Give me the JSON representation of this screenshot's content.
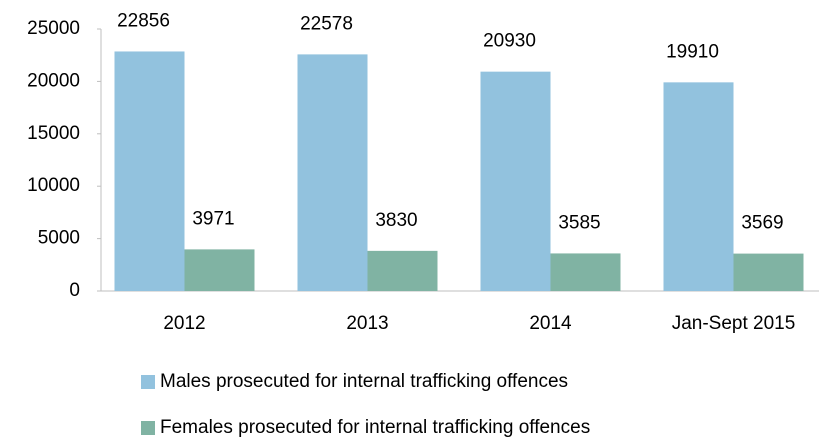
{
  "chart_data": {
    "type": "bar",
    "categories": [
      "2012",
      "2013",
      "2014",
      "Jan-Sept 2015"
    ],
    "series": [
      {
        "name": "Males prosecuted for internal trafficking offences",
        "color": "#92c2de",
        "values": [
          22856,
          22578,
          20930,
          19910
        ]
      },
      {
        "name": "Females prosecuted for internal trafficking offences",
        "color": "#80b3a3",
        "values": [
          3971,
          3830,
          3585,
          3569
        ]
      }
    ],
    "ylim": [
      0,
      25000
    ],
    "yticks": [
      0,
      5000,
      10000,
      15000,
      20000,
      25000
    ],
    "grid": false,
    "legend": "bottom"
  }
}
